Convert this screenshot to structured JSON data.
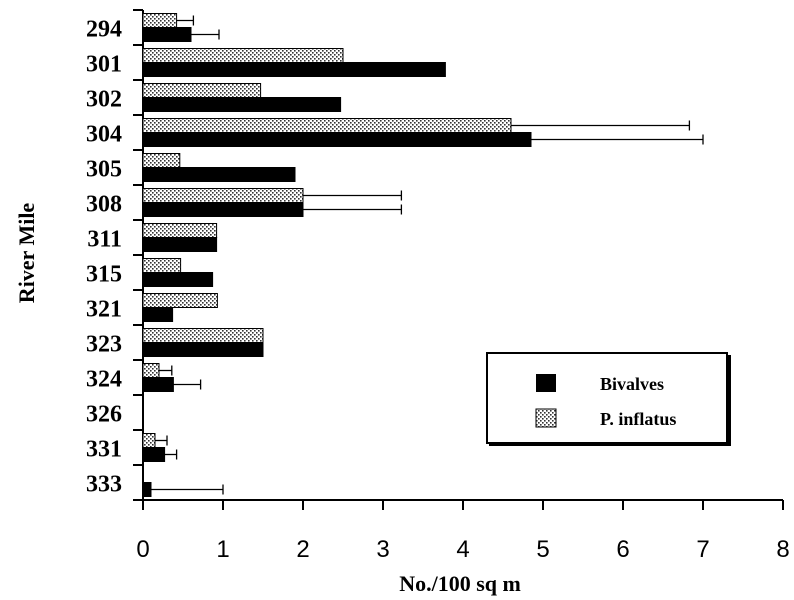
{
  "chart_data": {
    "type": "bar",
    "orientation": "horizontal",
    "categories": [
      "294",
      "301",
      "302",
      "304",
      "305",
      "308",
      "311",
      "315",
      "321",
      "323",
      "324",
      "326",
      "331",
      "333"
    ],
    "series": [
      {
        "name": "P. inflatus",
        "pattern": "stippled",
        "color": "#bbbbbb",
        "values": [
          0.42,
          2.5,
          1.47,
          4.6,
          0.46,
          2.0,
          0.92,
          0.47,
          0.93,
          1.5,
          0.2,
          0,
          0.15,
          0
        ],
        "err_upper": [
          0.63,
          null,
          null,
          6.83,
          null,
          3.23,
          null,
          null,
          null,
          null,
          0.36,
          null,
          0.3,
          null
        ]
      },
      {
        "name": "Bivalves",
        "pattern": "solid",
        "color": "#000000",
        "values": [
          0.6,
          3.78,
          2.47,
          4.85,
          1.9,
          2.0,
          0.92,
          0.87,
          0.37,
          1.5,
          0.38,
          0,
          0.27,
          0.1
        ],
        "err_upper": [
          0.95,
          null,
          null,
          7.0,
          null,
          3.23,
          null,
          null,
          null,
          null,
          0.72,
          null,
          0.42,
          1.0
        ]
      }
    ],
    "xlabel": "No./100 sq m",
    "ylabel": "River Mile",
    "xlim": [
      0,
      8
    ],
    "xticks": [
      "0",
      "1",
      "2",
      "3",
      "4",
      "5",
      "6",
      "7",
      "8"
    ],
    "grid": false,
    "legend_position": "lower-right",
    "legend": [
      {
        "label": "Bivalves",
        "pattern": "solid"
      },
      {
        "label": "P. inflatus",
        "pattern": "stippled"
      }
    ]
  }
}
